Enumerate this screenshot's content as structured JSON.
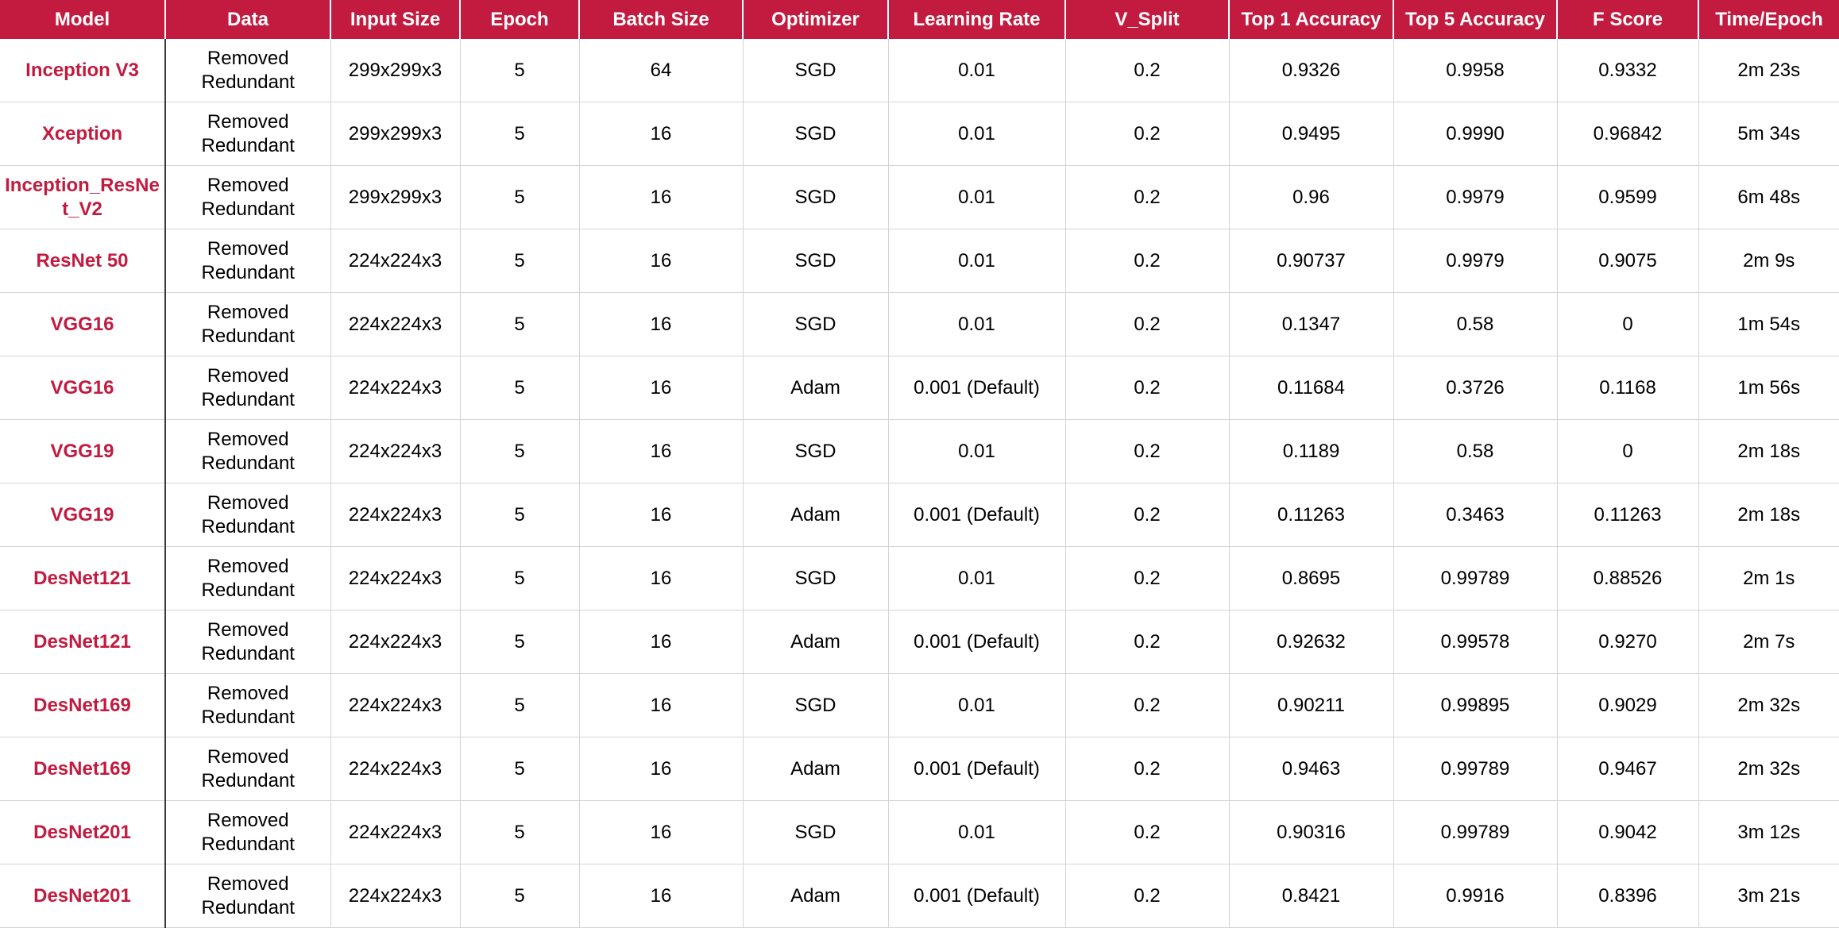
{
  "table": {
    "columns": [
      "Model",
      "Data",
      "Input Size",
      "Epoch",
      "Batch Size",
      "Optimizer",
      "Learning Rate",
      "V_Split",
      "Top 1 Accuracy",
      "Top 5 Accuracy",
      "F Score",
      "Time/Epoch"
    ],
    "rows": [
      [
        "Inception V3",
        "Removed Redundant",
        "299x299x3",
        "5",
        "64",
        "SGD",
        "0.01",
        "0.2",
        "0.9326",
        "0.9958",
        "0.9332",
        "2m 23s"
      ],
      [
        "Xception",
        "Removed Redundant",
        "299x299x3",
        "5",
        "16",
        "SGD",
        "0.01",
        "0.2",
        "0.9495",
        "0.9990",
        "0.96842",
        "5m 34s"
      ],
      [
        "Inception_ResNet_V2",
        "Removed Redundant",
        "299x299x3",
        "5",
        "16",
        "SGD",
        "0.01",
        "0.2",
        "0.96",
        "0.9979",
        "0.9599",
        "6m 48s"
      ],
      [
        "ResNet 50",
        "Removed Redundant",
        "224x224x3",
        "5",
        "16",
        "SGD",
        "0.01",
        "0.2",
        "0.90737",
        "0.9979",
        "0.9075",
        "2m 9s"
      ],
      [
        "VGG16",
        "Removed Redundant",
        "224x224x3",
        "5",
        "16",
        "SGD",
        "0.01",
        "0.2",
        "0.1347",
        "0.58",
        "0",
        "1m 54s"
      ],
      [
        "VGG16",
        "Removed Redundant",
        "224x224x3",
        "5",
        "16",
        "Adam",
        "0.001 (Default)",
        "0.2",
        "0.11684",
        "0.3726",
        "0.1168",
        "1m 56s"
      ],
      [
        "VGG19",
        "Removed Redundant",
        "224x224x3",
        "5",
        "16",
        "SGD",
        "0.01",
        "0.2",
        "0.1189",
        "0.58",
        "0",
        "2m 18s"
      ],
      [
        "VGG19",
        "Removed Redundant",
        "224x224x3",
        "5",
        "16",
        "Adam",
        "0.001 (Default)",
        "0.2",
        "0.11263",
        "0.3463",
        "0.11263",
        "2m 18s"
      ],
      [
        "DesNet121",
        "Removed Redundant",
        "224x224x3",
        "5",
        "16",
        "SGD",
        "0.01",
        "0.2",
        "0.8695",
        "0.99789",
        "0.88526",
        "2m 1s"
      ],
      [
        "DesNet121",
        "Removed Redundant",
        "224x224x3",
        "5",
        "16",
        "Adam",
        "0.001 (Default)",
        "0.2",
        "0.92632",
        "0.99578",
        "0.9270",
        "2m 7s"
      ],
      [
        "DesNet169",
        "Removed Redundant",
        "224x224x3",
        "5",
        "16",
        "SGD",
        "0.01",
        "0.2",
        "0.90211",
        "0.99895",
        "0.9029",
        "2m 32s"
      ],
      [
        "DesNet169",
        "Removed Redundant",
        "224x224x3",
        "5",
        "16",
        "Adam",
        "0.001 (Default)",
        "0.2",
        "0.9463",
        "0.99789",
        "0.9467",
        "2m 32s"
      ],
      [
        "DesNet201",
        "Removed Redundant",
        "224x224x3",
        "5",
        "16",
        "SGD",
        "0.01",
        "0.2",
        "0.90316",
        "0.99789",
        "0.9042",
        "3m 12s"
      ],
      [
        "DesNet201",
        "Removed Redundant",
        "224x224x3",
        "5",
        "16",
        "Adam",
        "0.001 (Default)",
        "0.2",
        "0.8421",
        "0.9916",
        "0.8396",
        "3m 21s"
      ]
    ]
  },
  "colors": {
    "header_background": "#c21b3f",
    "header_text": "#ffffff",
    "model_text": "#c21b3f",
    "cell_text": "#000000",
    "grid_line": "#d4d4d4"
  }
}
